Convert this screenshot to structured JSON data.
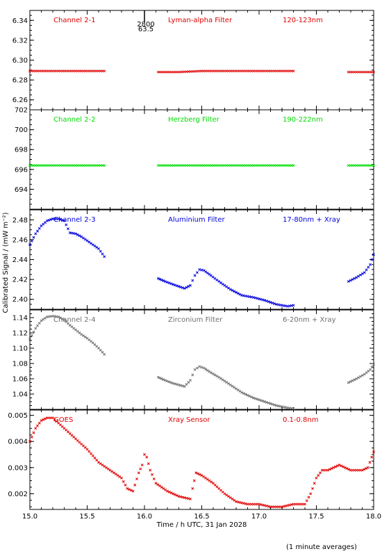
{
  "chart_data": {
    "type": "scatter",
    "x_axis": {
      "label": "Time / h UTC, 31 Jan 2028",
      "range": [
        15.0,
        18.0
      ],
      "ticks": [
        "15.0",
        "15.5",
        "16.0",
        "16.5",
        "17.0",
        "17.5",
        "18.0"
      ]
    },
    "y_axis_label": "Calibrated Signal / (mW m⁻²)",
    "time_marker": {
      "x": 16.0,
      "labels": [
        "2800",
        "63.5"
      ]
    },
    "footer_note": "(1 minute averages)",
    "panels": [
      {
        "name": "Channel 2-1",
        "filter": "Lyman-alpha Filter",
        "band": "120-123nm",
        "color": "#e00000",
        "ylim": [
          6.25,
          6.35
        ],
        "yticks": [
          "6.26",
          "6.28",
          "6.30",
          "6.32",
          "6.34"
        ],
        "segments": [
          {
            "x": [
              15.0,
              15.1,
              15.2,
              15.3,
              15.4,
              15.5,
              15.6,
              15.65
            ],
            "y": [
              6.289,
              6.289,
              6.289,
              6.289,
              6.289,
              6.289,
              6.289,
              6.289
            ]
          },
          {
            "x": [
              16.12,
              16.3,
              16.5,
              16.7,
              16.9,
              17.1,
              17.3
            ],
            "y": [
              6.288,
              6.288,
              6.289,
              6.289,
              6.289,
              6.289,
              6.289
            ]
          },
          {
            "x": [
              17.78,
              17.9,
              18.0
            ],
            "y": [
              6.288,
              6.288,
              6.288
            ]
          }
        ]
      },
      {
        "name": "Channel 2-2",
        "filter": "Herzberg Filter",
        "band": "190-222nm",
        "color": "#00dd00",
        "ylim": [
          692.0,
          702.0
        ],
        "yticks": [
          "694",
          "696",
          "698",
          "700",
          "702"
        ],
        "segments": [
          {
            "x": [
              15.0,
              15.2,
              15.4,
              15.65
            ],
            "y": [
              696.4,
              696.4,
              696.4,
              696.4
            ]
          },
          {
            "x": [
              16.12,
              16.4,
              16.7,
              17.0,
              17.3
            ],
            "y": [
              696.4,
              696.4,
              696.4,
              696.4,
              696.4
            ]
          },
          {
            "x": [
              17.78,
              17.9,
              18.0
            ],
            "y": [
              696.4,
              696.4,
              696.4
            ]
          }
        ]
      },
      {
        "name": "Channel 2-3",
        "filter": "Aluminium Filter",
        "band": "17-80nm + Xray",
        "color": "#0000dd",
        "ylim": [
          2.39,
          2.49
        ],
        "yticks": [
          "2.40",
          "2.42",
          "2.44",
          "2.46",
          "2.48"
        ],
        "segments": [
          {
            "x": [
              15.0,
              15.05,
              15.1,
              15.15,
              15.2,
              15.25,
              15.3,
              15.35,
              15.4,
              15.45,
              15.5,
              15.55,
              15.6,
              15.65
            ],
            "y": [
              2.455,
              2.466,
              2.474,
              2.479,
              2.481,
              2.481,
              2.479,
              2.467,
              2.466,
              2.463,
              2.459,
              2.455,
              2.451,
              2.443
            ]
          },
          {
            "x": [
              16.12,
              16.18,
              16.25,
              16.3,
              16.35,
              16.4,
              16.44,
              16.48,
              16.52,
              16.58,
              16.65,
              16.75,
              16.85,
              16.95,
              17.05,
              17.15,
              17.25,
              17.3
            ],
            "y": [
              2.421,
              2.418,
              2.415,
              2.413,
              2.411,
              2.414,
              2.424,
              2.43,
              2.429,
              2.424,
              2.418,
              2.41,
              2.404,
              2.402,
              2.399,
              2.395,
              2.393,
              2.394
            ]
          },
          {
            "x": [
              17.78,
              17.85,
              17.92,
              17.97,
              18.0
            ],
            "y": [
              2.418,
              2.422,
              2.427,
              2.435,
              2.445
            ]
          }
        ]
      },
      {
        "name": "Channel 2-4",
        "filter": "Zirconium Filter",
        "band": "6-20nm + Xray",
        "color": "#707070",
        "ylim": [
          1.02,
          1.15
        ],
        "yticks": [
          "1.04",
          "1.06",
          "1.08",
          "1.10",
          "1.12",
          "1.14"
        ],
        "segments": [
          {
            "x": [
              15.0,
              15.05,
              15.1,
              15.15,
              15.2,
              15.25,
              15.3,
              15.35,
              15.4,
              15.45,
              15.5,
              15.55,
              15.6,
              15.65
            ],
            "y": [
              1.112,
              1.126,
              1.136,
              1.141,
              1.142,
              1.141,
              1.137,
              1.13,
              1.124,
              1.118,
              1.113,
              1.107,
              1.1,
              1.092
            ]
          },
          {
            "x": [
              16.12,
              16.18,
              16.25,
              16.3,
              16.35,
              16.4,
              16.44,
              16.48,
              16.52,
              16.58,
              16.65,
              16.75,
              16.85,
              16.95,
              17.05,
              17.15,
              17.25,
              17.3
            ],
            "y": [
              1.062,
              1.058,
              1.054,
              1.052,
              1.05,
              1.058,
              1.072,
              1.076,
              1.074,
              1.068,
              1.062,
              1.052,
              1.042,
              1.035,
              1.03,
              1.025,
              1.022,
              1.021
            ]
          },
          {
            "x": [
              17.78,
              17.85,
              17.92,
              17.97,
              18.0
            ],
            "y": [
              1.055,
              1.06,
              1.066,
              1.072,
              1.079
            ]
          }
        ]
      },
      {
        "name": "GOES",
        "filter": "Xray Sensor",
        "band": "0.1-0.8nm",
        "color": "#e00000",
        "ylim": [
          0.0014,
          0.0052
        ],
        "yticks": [
          "0.002",
          "0.003",
          "0.004",
          "0.005"
        ],
        "segments": [
          {
            "x": [
              15.0,
              15.05,
              15.1,
              15.15,
              15.2,
              15.25,
              15.3,
              15.4,
              15.5,
              15.6,
              15.7,
              15.8,
              15.85,
              15.9,
              15.95,
              15.98,
              16.0,
              16.02,
              16.05,
              16.1,
              16.2,
              16.3,
              16.4,
              16.42,
              16.45,
              16.5,
              16.6,
              16.7,
              16.8,
              16.9,
              17.0,
              17.1,
              17.2,
              17.3,
              17.4,
              17.45,
              17.5,
              17.55,
              17.6,
              17.65,
              17.7,
              17.75,
              17.8,
              17.9,
              17.95,
              18.0
            ],
            "y": [
              0.004,
              0.0045,
              0.0048,
              0.0049,
              0.0049,
              0.0047,
              0.0045,
              0.0041,
              0.0037,
              0.0032,
              0.0029,
              0.0026,
              0.0022,
              0.0021,
              0.0028,
              0.0031,
              0.0035,
              0.0034,
              0.0029,
              0.0024,
              0.0021,
              0.0019,
              0.0018,
              0.0022,
              0.0028,
              0.0027,
              0.0024,
              0.002,
              0.0017,
              0.0016,
              0.0016,
              0.0015,
              0.0015,
              0.0016,
              0.0016,
              0.002,
              0.0026,
              0.0029,
              0.0029,
              0.003,
              0.0031,
              0.003,
              0.0029,
              0.0029,
              0.003,
              0.0036
            ]
          }
        ]
      }
    ]
  }
}
